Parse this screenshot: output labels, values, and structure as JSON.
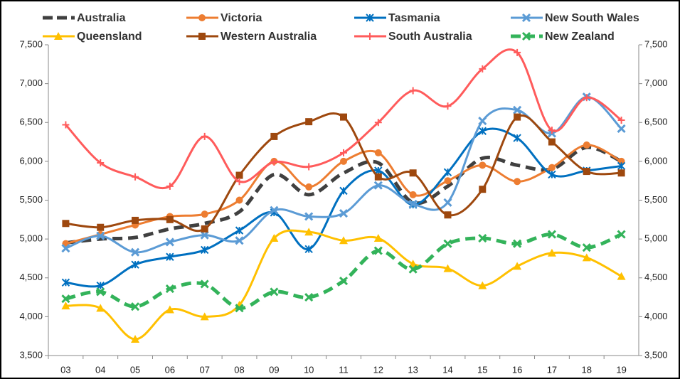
{
  "chart_data": {
    "type": "line",
    "categories": [
      "03",
      "04",
      "05",
      "06",
      "07",
      "08",
      "09",
      "10",
      "11",
      "12",
      "13",
      "14",
      "15",
      "16",
      "17",
      "18",
      "19"
    ],
    "ylim": [
      3500,
      7500
    ],
    "yticks": [
      {
        "value": 3500,
        "label": "3,500"
      },
      {
        "value": 4000,
        "label": "4,000"
      },
      {
        "value": 4500,
        "label": "4,500"
      },
      {
        "value": 5000,
        "label": "5,000"
      },
      {
        "value": 5500,
        "label": "5,500"
      },
      {
        "value": 6000,
        "label": "6,000"
      },
      {
        "value": 6500,
        "label": "6,500"
      },
      {
        "value": 7000,
        "label": "7,000"
      },
      {
        "value": 7500,
        "label": "7,500"
      }
    ],
    "smooth": true,
    "series": [
      {
        "name": "Australia",
        "color": "#404040",
        "dash": true,
        "marker": "none",
        "values": [
          4950,
          5000,
          5020,
          5130,
          5200,
          5350,
          5830,
          5570,
          5850,
          5980,
          5470,
          5680,
          6040,
          5950,
          5900,
          6180,
          6000
        ]
      },
      {
        "name": "Victoria",
        "color": "#ed7d31",
        "dash": false,
        "marker": "circle",
        "values": [
          4940,
          5060,
          5180,
          5290,
          5320,
          5500,
          6000,
          5670,
          6000,
          6110,
          5570,
          5750,
          5950,
          5740,
          5920,
          6210,
          6000
        ]
      },
      {
        "name": "Tasmania",
        "color": "#0070c0",
        "dash": false,
        "marker": "star",
        "values": [
          4440,
          4400,
          4670,
          4770,
          4860,
          5110,
          5340,
          4870,
          5620,
          5880,
          5440,
          5860,
          6390,
          6300,
          5830,
          5880,
          5940
        ]
      },
      {
        "name": "New South Wales",
        "color": "#5b9bd5",
        "dash": false,
        "marker": "x",
        "values": [
          4880,
          5040,
          4830,
          4960,
          5050,
          4980,
          5370,
          5290,
          5330,
          5690,
          5450,
          5470,
          6520,
          6660,
          6360,
          6830,
          6420
        ]
      },
      {
        "name": "Queensland",
        "color": "#ffc000",
        "dash": false,
        "marker": "triangle",
        "values": [
          4140,
          4110,
          3710,
          4090,
          4000,
          4150,
          5010,
          5090,
          4980,
          5010,
          4680,
          4620,
          4400,
          4650,
          4820,
          4760,
          4520
        ]
      },
      {
        "name": "Western Australia",
        "color": "#9e480e",
        "dash": false,
        "marker": "square",
        "values": [
          5200,
          5150,
          5240,
          5250,
          5130,
          5820,
          6320,
          6510,
          6570,
          5800,
          5850,
          5310,
          5640,
          6570,
          6250,
          5870,
          5850
        ]
      },
      {
        "name": "South Australia",
        "color": "#ff5b5b",
        "dash": false,
        "marker": "plus",
        "values": [
          6470,
          5980,
          5800,
          5680,
          6320,
          5740,
          5990,
          5930,
          6110,
          6500,
          6910,
          6710,
          7190,
          7400,
          6400,
          6820,
          6530
        ]
      },
      {
        "name": "New Zealand",
        "color": "#33b35a",
        "dash": true,
        "marker": "x",
        "values": [
          4230,
          4320,
          4130,
          4360,
          4420,
          4110,
          4320,
          4250,
          4460,
          4850,
          4610,
          4940,
          5010,
          4940,
          5060,
          4890,
          5060
        ]
      }
    ]
  }
}
